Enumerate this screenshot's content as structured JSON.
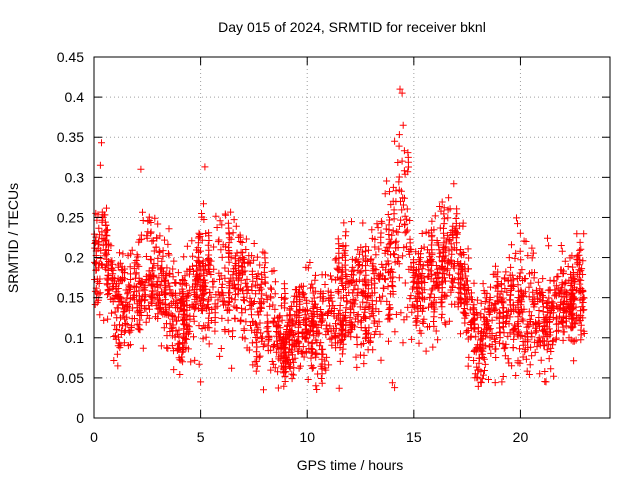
{
  "chart_data": {
    "type": "scatter",
    "title": "Day 015 of 2024, SRMTID for receiver bknl",
    "xlabel": "GPS time / hours",
    "ylabel": "SRMTID / TECUs",
    "xlim": [
      0,
      24.2
    ],
    "ylim": [
      0,
      0.45
    ],
    "xticks": [
      0,
      5,
      10,
      15,
      20
    ],
    "yticks": [
      0,
      0.05,
      0.1,
      0.15,
      0.2,
      0.25,
      0.3,
      0.35,
      0.4,
      0.45
    ],
    "xtick_labels": [
      "0",
      "5",
      "10",
      "15",
      "20"
    ],
    "ytick_labels": [
      "0",
      "0.05",
      "0.1",
      "0.15",
      "0.2",
      "0.25",
      "0.3",
      "0.35",
      "0.4",
      "0.45"
    ],
    "grid": true,
    "marker": "+",
    "color": "#ff0000",
    "series": [
      {
        "name": "SRMTID",
        "description_profile_hours": [
          0,
          0.4,
          1,
          2,
          2.5,
          3,
          4,
          5,
          6,
          7,
          8,
          9,
          10,
          11,
          12,
          13,
          14,
          14.4,
          15,
          16,
          17,
          18,
          19,
          20,
          21,
          22,
          23
        ],
        "typical_center": [
          0.19,
          0.23,
          0.14,
          0.15,
          0.2,
          0.17,
          0.12,
          0.17,
          0.17,
          0.16,
          0.13,
          0.1,
          0.12,
          0.12,
          0.16,
          0.15,
          0.2,
          0.26,
          0.16,
          0.18,
          0.2,
          0.1,
          0.13,
          0.15,
          0.12,
          0.15,
          0.15
        ],
        "typical_spread": [
          0.04,
          0.05,
          0.04,
          0.04,
          0.06,
          0.05,
          0.04,
          0.06,
          0.05,
          0.05,
          0.05,
          0.04,
          0.04,
          0.05,
          0.05,
          0.05,
          0.07,
          0.1,
          0.05,
          0.05,
          0.05,
          0.04,
          0.05,
          0.05,
          0.05,
          0.04,
          0.04
        ],
        "notable_points": [
          {
            "x": 0.35,
            "y": 0.343
          },
          {
            "x": 0.3,
            "y": 0.315
          },
          {
            "x": 2.2,
            "y": 0.31
          },
          {
            "x": 5.2,
            "y": 0.313
          },
          {
            "x": 14.35,
            "y": 0.41
          },
          {
            "x": 14.45,
            "y": 0.405
          },
          {
            "x": 14.5,
            "y": 0.365
          },
          {
            "x": 14.1,
            "y": 0.345
          },
          {
            "x": 11.5,
            "y": 0.037
          },
          {
            "x": 5.0,
            "y": 0.045
          },
          {
            "x": 21.2,
            "y": 0.045
          },
          {
            "x": 18.5,
            "y": 0.048
          }
        ]
      }
    ]
  }
}
